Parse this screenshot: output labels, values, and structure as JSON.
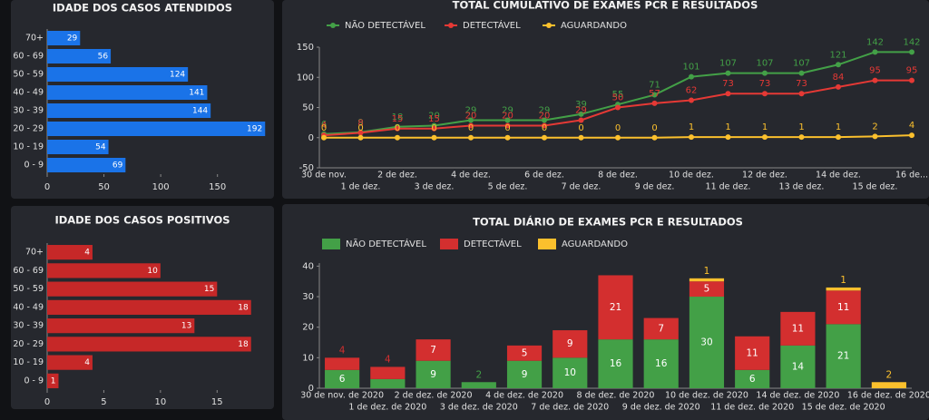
{
  "chart_data": [
    {
      "type": "bar",
      "orientation": "horizontal",
      "title": "IDADE DOS CASOS ATENDIDOS",
      "categories": [
        "70+",
        "60 - 69",
        "50 - 59",
        "40 - 49",
        "30 - 39",
        "20 - 29",
        "10 - 19",
        "0 - 9"
      ],
      "values": [
        29,
        56,
        124,
        141,
        144,
        192,
        54,
        69
      ],
      "color": "#1a73e8",
      "xlim": [
        0,
        195
      ],
      "xticks": [
        0,
        50,
        100,
        150
      ]
    },
    {
      "type": "bar",
      "orientation": "horizontal",
      "title": "IDADE DOS CASOS POSITIVOS",
      "categories": [
        "70+",
        "60 - 69",
        "50 - 59",
        "40 - 49",
        "30 - 39",
        "20 - 29",
        "10 - 19",
        "0 - 9"
      ],
      "values": [
        4,
        10,
        15,
        18,
        13,
        18,
        4,
        1
      ],
      "color": "#c62828",
      "xlim": [
        0,
        18.5
      ],
      "xticks": [
        0,
        5,
        10,
        15
      ]
    },
    {
      "type": "line",
      "title": "TOTAL CUMULATIVO DE EXAMES PCR E RESULTADOS",
      "categories": [
        "30 de nov.",
        "1 de dez.",
        "2 de dez.",
        "3 de dez.",
        "4 de dez.",
        "5 de dez.",
        "6 de dez.",
        "7 de dez.",
        "8 de dez.",
        "9 de dez.",
        "10 de dez.",
        "11 de dez.",
        "12 de dez.",
        "13 de dez.",
        "14 de dez.",
        "15 de dez.",
        "16 de..."
      ],
      "series": [
        {
          "name": "NÃO DETECTÁVEL",
          "color": "#43a047",
          "values": [
            6,
            9,
            18,
            20,
            29,
            29,
            29,
            39,
            55,
            71,
            101,
            107,
            107,
            107,
            121,
            142,
            142
          ]
        },
        {
          "name": "DETECTÁVEL",
          "color": "#e53935",
          "values": [
            4,
            8,
            15,
            15,
            20,
            20,
            20,
            29,
            50,
            57,
            62,
            73,
            73,
            73,
            84,
            95,
            95
          ]
        },
        {
          "name": "AGUARDANDO",
          "color": "#fbc02d",
          "values": [
            0,
            0,
            0,
            0,
            0,
            0,
            0,
            0,
            0,
            0,
            1,
            1,
            1,
            1,
            1,
            2,
            4
          ]
        }
      ],
      "ylim": [
        -50,
        150
      ],
      "yticks": [
        -50,
        0,
        50,
        100,
        150
      ]
    },
    {
      "type": "stacked_bar",
      "title": "TOTAL DIÁRIO DE EXAMES PCR E RESULTADOS",
      "categories": [
        "30 de nov. de 2020",
        "1 de dez. de 2020",
        "2 de dez. de 2020",
        "3 de dez. de 2020",
        "4 de dez. de 2020",
        "7 de dez. de 2020",
        "8 de dez. de 2020",
        "9 de dez. de 2020",
        "10 de dez. de 2020",
        "11 de dez. de 2020",
        "14 de dez. de 2020",
        "15 de dez. de 2020",
        "16 de dez. de 2020"
      ],
      "series": [
        {
          "name": "NÃO DETECTÁVEL",
          "color": "#43a047",
          "values": [
            6,
            3,
            9,
            2,
            9,
            10,
            16,
            16,
            30,
            6,
            14,
            21,
            0
          ]
        },
        {
          "name": "DETECTÁVEL",
          "color": "#d32f2f",
          "values": [
            4,
            4,
            7,
            0,
            5,
            9,
            21,
            7,
            5,
            11,
            11,
            11,
            0
          ]
        },
        {
          "name": "AGUARDANDO",
          "color": "#fbc02d",
          "values": [
            0,
            0,
            0,
            0,
            0,
            0,
            0,
            0,
            1,
            0,
            0,
            1,
            2
          ]
        }
      ],
      "ylim": [
        0,
        41
      ],
      "yticks": [
        0,
        10,
        20,
        30,
        40
      ]
    }
  ]
}
